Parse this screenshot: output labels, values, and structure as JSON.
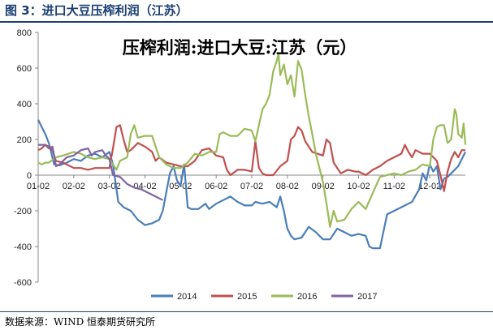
{
  "header": {
    "figure_title": "图 3：进口大豆压榨利润（江苏）",
    "source": "数据来源：WIND  恒泰期货研究所"
  },
  "chart_data": {
    "type": "line",
    "title": "压榨利润:进口大豆:江苏（元）",
    "xlabel": "",
    "ylabel": "",
    "ylim": [
      -600,
      800
    ],
    "yticks": [
      -600,
      -400,
      -200,
      0,
      200,
      400,
      600,
      800
    ],
    "xlim": [
      0,
      12
    ],
    "xticks": [
      "01-02",
      "02-02",
      "03-02",
      "04-02",
      "05-02",
      "06-02",
      "07-02",
      "08-02",
      "09-02",
      "10-02",
      "11-02",
      "12-02"
    ],
    "grid": false,
    "legend": "bottom",
    "series": [
      {
        "name": "2014",
        "color": "#4a7ebb",
        "points": [
          [
            0.0,
            310
          ],
          [
            0.1,
            270
          ],
          [
            0.2,
            230
          ],
          [
            0.3,
            180
          ],
          [
            0.45,
            60
          ],
          [
            0.6,
            55
          ],
          [
            0.8,
            70
          ],
          [
            1.0,
            90
          ],
          [
            1.2,
            80
          ],
          [
            1.4,
            110
          ],
          [
            1.6,
            120
          ],
          [
            1.8,
            100
          ],
          [
            2.0,
            130
          ],
          [
            2.1,
            60
          ],
          [
            2.25,
            -150
          ],
          [
            2.4,
            -180
          ],
          [
            2.6,
            -200
          ],
          [
            2.8,
            -250
          ],
          [
            3.0,
            -280
          ],
          [
            3.2,
            -270
          ],
          [
            3.4,
            -250
          ],
          [
            3.5,
            -200
          ],
          [
            3.7,
            10
          ],
          [
            3.8,
            50
          ],
          [
            3.9,
            -30
          ],
          [
            4.0,
            -60
          ],
          [
            4.1,
            60
          ],
          [
            4.2,
            -180
          ],
          [
            4.3,
            -190
          ],
          [
            4.5,
            -190
          ],
          [
            4.7,
            -160
          ],
          [
            4.8,
            -190
          ],
          [
            5.0,
            -160
          ],
          [
            5.2,
            -140
          ],
          [
            5.4,
            -120
          ],
          [
            5.6,
            -150
          ],
          [
            5.8,
            -170
          ],
          [
            6.0,
            -170
          ],
          [
            6.1,
            -150
          ],
          [
            6.3,
            -160
          ],
          [
            6.5,
            -150
          ],
          [
            6.7,
            -180
          ],
          [
            6.8,
            -120
          ],
          [
            6.9,
            -200
          ],
          [
            7.0,
            -300
          ],
          [
            7.1,
            -340
          ],
          [
            7.2,
            -360
          ],
          [
            7.4,
            -350
          ],
          [
            7.6,
            -290
          ],
          [
            7.8,
            -320
          ],
          [
            8.0,
            -360
          ],
          [
            8.2,
            -360
          ],
          [
            8.4,
            -300
          ],
          [
            8.6,
            -320
          ],
          [
            8.8,
            -340
          ],
          [
            9.0,
            -330
          ],
          [
            9.2,
            -340
          ],
          [
            9.3,
            -400
          ],
          [
            9.4,
            -410
          ],
          [
            9.6,
            -410
          ],
          [
            9.8,
            -220
          ],
          [
            10.0,
            -200
          ],
          [
            10.2,
            -180
          ],
          [
            10.5,
            -150
          ],
          [
            10.7,
            -80
          ],
          [
            10.8,
            10
          ],
          [
            10.9,
            -30
          ],
          [
            11.0,
            60
          ],
          [
            11.1,
            20
          ],
          [
            11.2,
            50
          ],
          [
            11.3,
            -80
          ],
          [
            11.4,
            -20
          ],
          [
            11.5,
            -10
          ],
          [
            11.6,
            10
          ],
          [
            11.8,
            50
          ],
          [
            11.9,
            90
          ],
          [
            12.0,
            130
          ]
        ]
      },
      {
        "name": "2015",
        "color": "#c0504d",
        "points": [
          [
            0.0,
            140
          ],
          [
            0.1,
            150
          ],
          [
            0.2,
            170
          ],
          [
            0.3,
            160
          ],
          [
            0.4,
            140
          ],
          [
            0.5,
            80
          ],
          [
            0.7,
            70
          ],
          [
            1.0,
            40
          ],
          [
            1.2,
            40
          ],
          [
            1.4,
            30
          ],
          [
            1.6,
            40
          ],
          [
            1.8,
            40
          ],
          [
            2.0,
            40
          ],
          [
            2.1,
            150
          ],
          [
            2.2,
            270
          ],
          [
            2.3,
            280
          ],
          [
            2.4,
            200
          ],
          [
            2.5,
            130
          ],
          [
            2.6,
            140
          ],
          [
            2.8,
            180
          ],
          [
            3.0,
            160
          ],
          [
            3.2,
            130
          ],
          [
            3.3,
            80
          ],
          [
            3.4,
            100
          ],
          [
            3.6,
            70
          ],
          [
            3.8,
            60
          ],
          [
            4.0,
            50
          ],
          [
            4.2,
            50
          ],
          [
            4.4,
            80
          ],
          [
            4.6,
            140
          ],
          [
            4.8,
            150
          ],
          [
            5.0,
            110
          ],
          [
            5.2,
            100
          ],
          [
            5.3,
            30
          ],
          [
            5.4,
            0
          ],
          [
            5.6,
            30
          ],
          [
            5.8,
            30
          ],
          [
            6.0,
            20
          ],
          [
            6.1,
            190
          ],
          [
            6.2,
            40
          ],
          [
            6.3,
            10
          ],
          [
            6.4,
            0
          ],
          [
            6.6,
            0
          ],
          [
            6.8,
            50
          ],
          [
            7.0,
            80
          ],
          [
            7.1,
            200
          ],
          [
            7.2,
            220
          ],
          [
            7.3,
            270
          ],
          [
            7.4,
            250
          ],
          [
            7.5,
            190
          ],
          [
            7.7,
            130
          ],
          [
            8.0,
            110
          ],
          [
            8.1,
            200
          ],
          [
            8.2,
            180
          ],
          [
            8.3,
            70
          ],
          [
            8.5,
            10
          ],
          [
            8.7,
            30
          ],
          [
            8.9,
            20
          ],
          [
            9.0,
            20
          ],
          [
            9.2,
            0
          ],
          [
            9.4,
            30
          ],
          [
            9.6,
            50
          ],
          [
            9.8,
            80
          ],
          [
            10.0,
            100
          ],
          [
            10.2,
            120
          ],
          [
            10.3,
            170
          ],
          [
            10.4,
            130
          ],
          [
            10.5,
            100
          ],
          [
            10.6,
            140
          ],
          [
            10.8,
            120
          ],
          [
            11.0,
            120
          ],
          [
            11.2,
            80
          ],
          [
            11.3,
            0
          ],
          [
            11.4,
            -90
          ],
          [
            11.5,
            20
          ],
          [
            11.6,
            90
          ],
          [
            11.7,
            130
          ],
          [
            11.8,
            100
          ],
          [
            11.9,
            140
          ],
          [
            12.0,
            140
          ]
        ]
      },
      {
        "name": "2016",
        "color": "#9bbb59",
        "points": [
          [
            0.0,
            70
          ],
          [
            0.1,
            60
          ],
          [
            0.2,
            70
          ],
          [
            0.3,
            70
          ],
          [
            0.5,
            100
          ],
          [
            0.7,
            110
          ],
          [
            1.0,
            130
          ],
          [
            1.2,
            120
          ],
          [
            1.4,
            100
          ],
          [
            1.6,
            90
          ],
          [
            1.8,
            100
          ],
          [
            2.0,
            90
          ],
          [
            2.2,
            30
          ],
          [
            2.3,
            80
          ],
          [
            2.5,
            100
          ],
          [
            2.6,
            230
          ],
          [
            2.7,
            280
          ],
          [
            2.8,
            210
          ],
          [
            3.0,
            220
          ],
          [
            3.2,
            220
          ],
          [
            3.4,
            100
          ],
          [
            3.6,
            60
          ],
          [
            3.8,
            40
          ],
          [
            4.0,
            40
          ],
          [
            4.2,
            70
          ],
          [
            4.4,
            120
          ],
          [
            4.6,
            110
          ],
          [
            4.8,
            130
          ],
          [
            5.0,
            130
          ],
          [
            5.1,
            230
          ],
          [
            5.2,
            240
          ],
          [
            5.4,
            220
          ],
          [
            5.6,
            220
          ],
          [
            5.8,
            260
          ],
          [
            6.0,
            250
          ],
          [
            6.1,
            190
          ],
          [
            6.2,
            280
          ],
          [
            6.3,
            370
          ],
          [
            6.4,
            400
          ],
          [
            6.5,
            450
          ],
          [
            6.6,
            580
          ],
          [
            6.7,
            640
          ],
          [
            6.75,
            680
          ],
          [
            6.8,
            560
          ],
          [
            6.9,
            620
          ],
          [
            7.0,
            510
          ],
          [
            7.1,
            560
          ],
          [
            7.2,
            440
          ],
          [
            7.3,
            640
          ],
          [
            7.4,
            590
          ],
          [
            7.5,
            450
          ],
          [
            7.6,
            330
          ],
          [
            7.7,
            230
          ],
          [
            7.8,
            120
          ],
          [
            7.9,
            40
          ],
          [
            8.0,
            -40
          ],
          [
            8.1,
            -160
          ],
          [
            8.2,
            -290
          ],
          [
            8.3,
            -200
          ],
          [
            8.4,
            -260
          ],
          [
            8.6,
            -250
          ],
          [
            8.8,
            -190
          ],
          [
            9.0,
            -150
          ],
          [
            9.2,
            -190
          ],
          [
            9.4,
            -100
          ],
          [
            9.6,
            -10
          ],
          [
            9.8,
            0
          ],
          [
            10.0,
            10
          ],
          [
            10.2,
            0
          ],
          [
            10.4,
            20
          ],
          [
            10.6,
            30
          ],
          [
            10.8,
            60
          ],
          [
            11.0,
            50
          ],
          [
            11.1,
            200
          ],
          [
            11.2,
            270
          ],
          [
            11.3,
            280
          ],
          [
            11.4,
            280
          ],
          [
            11.5,
            180
          ],
          [
            11.6,
            200
          ],
          [
            11.7,
            370
          ],
          [
            11.75,
            340
          ],
          [
            11.8,
            230
          ],
          [
            11.9,
            210
          ],
          [
            11.95,
            290
          ],
          [
            12.0,
            170
          ]
        ]
      },
      {
        "name": "2017",
        "color": "#8064a2",
        "points": [
          [
            0.0,
            170
          ],
          [
            0.1,
            170
          ],
          [
            0.2,
            170
          ],
          [
            0.3,
            150
          ],
          [
            0.4,
            160
          ],
          [
            0.45,
            110
          ],
          [
            0.5,
            50
          ],
          [
            0.6,
            60
          ],
          [
            0.8,
            100
          ],
          [
            1.0,
            110
          ],
          [
            1.2,
            140
          ],
          [
            1.4,
            150
          ],
          [
            1.5,
            110
          ],
          [
            1.6,
            130
          ],
          [
            1.8,
            140
          ],
          [
            1.9,
            110
          ],
          [
            2.0,
            90
          ],
          [
            2.1,
            0
          ],
          [
            2.3,
            -10
          ],
          [
            2.5,
            -50
          ],
          [
            2.7,
            -70
          ],
          [
            2.9,
            -80
          ],
          [
            3.1,
            -100
          ],
          [
            3.3,
            -120
          ],
          [
            3.5,
            -140
          ]
        ]
      }
    ]
  }
}
